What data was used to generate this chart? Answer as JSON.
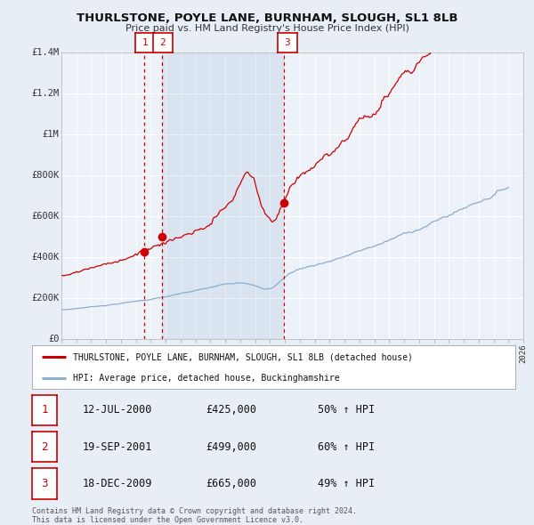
{
  "title": "THURLSTONE, POYLE LANE, BURNHAM, SLOUGH, SL1 8LB",
  "subtitle": "Price paid vs. HM Land Registry's House Price Index (HPI)",
  "bg_color": "#e8eef5",
  "plot_bg_color": "#edf1f8",
  "grid_color": "#ffffff",
  "red_line_color": "#cc0000",
  "blue_line_color": "#88aed0",
  "sale_marker_color": "#cc0000",
  "dashed_line_color": "#cc0000",
  "ylim": [
    0,
    1400000
  ],
  "yticks": [
    0,
    200000,
    400000,
    600000,
    800000,
    1000000,
    1200000,
    1400000
  ],
  "ytick_labels": [
    "£0",
    "£200K",
    "£400K",
    "£600K",
    "£800K",
    "£1M",
    "£1.2M",
    "£1.4M"
  ],
  "xstart": 1995,
  "xend": 2025,
  "legend_label_red": "THURLSTONE, POYLE LANE, BURNHAM, SLOUGH, SL1 8LB (detached house)",
  "legend_label_blue": "HPI: Average price, detached house, Buckinghamshire",
  "sale1_date": "12-JUL-2000",
  "sale1_price": 425000,
  "sale1_pct": "50%",
  "sale1_x": 2000.53,
  "sale2_date": "19-SEP-2001",
  "sale2_price": 499000,
  "sale2_pct": "60%",
  "sale2_x": 2001.72,
  "sale3_date": "18-DEC-2009",
  "sale3_price": 665000,
  "sale3_pct": "49%",
  "sale3_x": 2009.96,
  "footer_line1": "Contains HM Land Registry data © Crown copyright and database right 2024.",
  "footer_line2": "This data is licensed under the Open Government Licence v3.0."
}
